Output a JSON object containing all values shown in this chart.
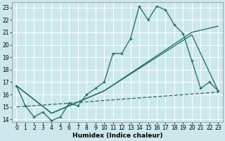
{
  "xlabel": "Humidex (Indice chaleur)",
  "bg_color": "#cce8ec",
  "grid_color": "#ffffff",
  "line_color": "#1a6b5a",
  "xlim": [
    -0.5,
    23.5
  ],
  "ylim": [
    13.8,
    23.4
  ],
  "xticks": [
    0,
    1,
    2,
    3,
    4,
    5,
    6,
    7,
    8,
    9,
    10,
    11,
    12,
    13,
    14,
    15,
    16,
    17,
    18,
    19,
    20,
    21,
    22,
    23
  ],
  "yticks": [
    14,
    15,
    16,
    17,
    18,
    19,
    20,
    21,
    22,
    23
  ],
  "series1": [
    [
      0,
      16.7
    ],
    [
      1,
      15.1
    ],
    [
      2,
      14.2
    ],
    [
      3,
      14.6
    ],
    [
      4,
      13.9
    ],
    [
      5,
      14.2
    ],
    [
      6,
      15.3
    ],
    [
      7,
      15.1
    ],
    [
      8,
      16.0
    ],
    [
      9,
      16.5
    ],
    [
      10,
      17.0
    ],
    [
      11,
      19.3
    ],
    [
      12,
      19.3
    ],
    [
      13,
      20.5
    ],
    [
      14,
      23.1
    ],
    [
      15,
      22.0
    ],
    [
      16,
      23.1
    ],
    [
      17,
      22.8
    ],
    [
      18,
      21.6
    ],
    [
      19,
      20.9
    ],
    [
      20,
      18.7
    ],
    [
      21,
      16.5
    ],
    [
      22,
      17.0
    ],
    [
      23,
      16.3
    ]
  ],
  "series2": [
    [
      0,
      16.7
    ],
    [
      4,
      14.5
    ],
    [
      10,
      16.3
    ],
    [
      20,
      21.0
    ],
    [
      23,
      21.5
    ]
  ],
  "series3": [
    [
      0,
      16.7
    ],
    [
      4,
      14.5
    ],
    [
      10,
      16.3
    ],
    [
      20,
      20.8
    ],
    [
      23,
      16.3
    ]
  ],
  "series4": [
    [
      0,
      15.0
    ],
    [
      23,
      16.2
    ]
  ]
}
